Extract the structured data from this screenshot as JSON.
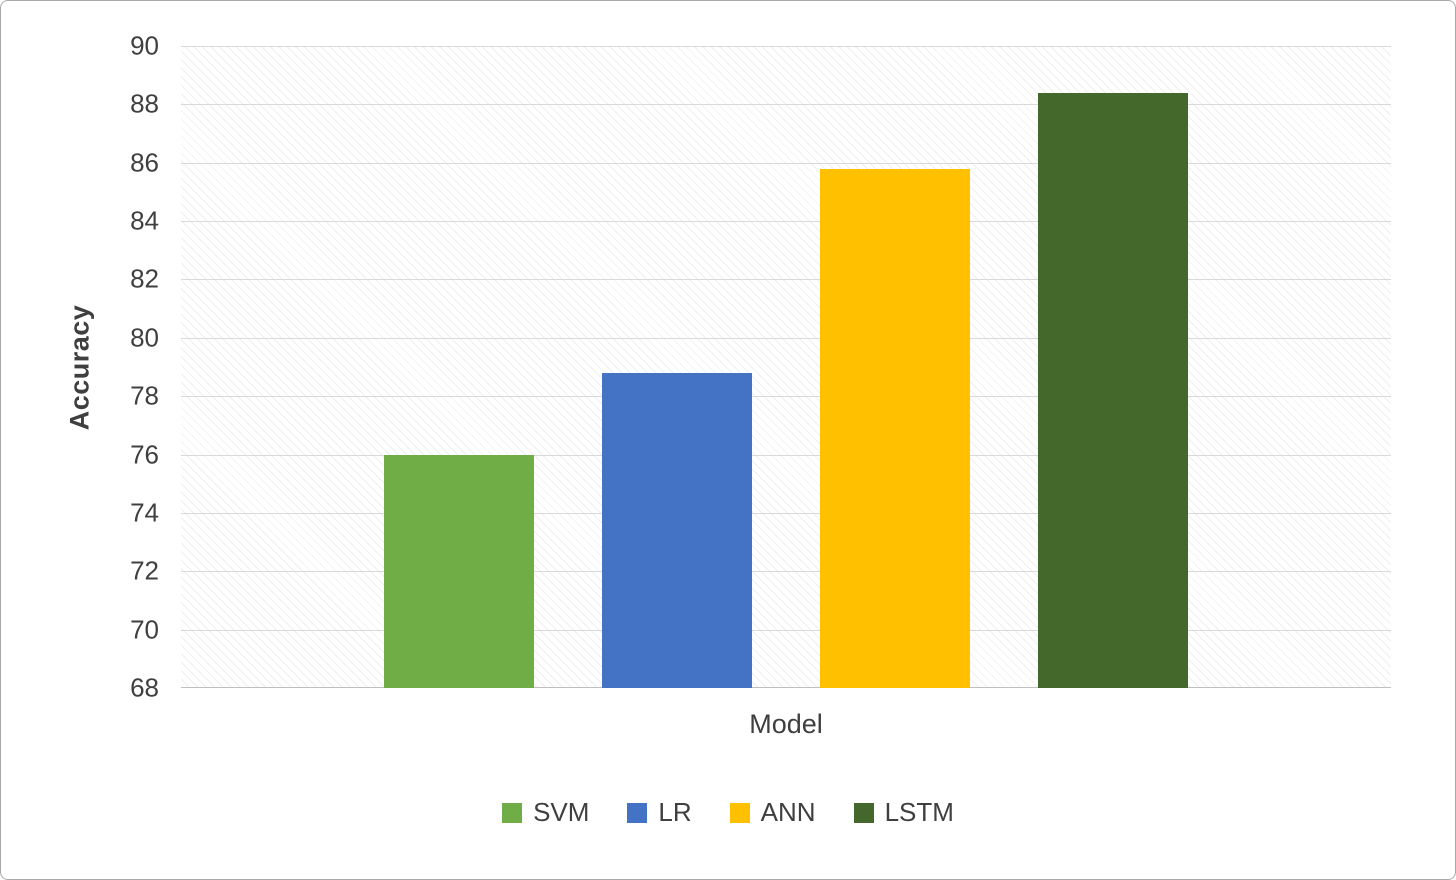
{
  "chart_data": {
    "type": "bar",
    "title": "",
    "xlabel": "Model",
    "ylabel": "Accuracy",
    "categories": [
      "SVM",
      "LR",
      "ANN",
      "LSTM"
    ],
    "values": [
      76,
      78.8,
      85.8,
      88.4
    ],
    "colors": [
      "#70AD47",
      "#4472C4",
      "#FFC000",
      "#44682B"
    ],
    "ylim": [
      68,
      90
    ],
    "yticks": [
      68,
      70,
      72,
      74,
      76,
      78,
      80,
      82,
      84,
      86,
      88,
      90
    ],
    "grid": true,
    "plot_background": "diagonal-hatch",
    "legend": {
      "position": "bottom",
      "entries": [
        "SVM",
        "LR",
        "ANN",
        "LSTM"
      ]
    }
  }
}
